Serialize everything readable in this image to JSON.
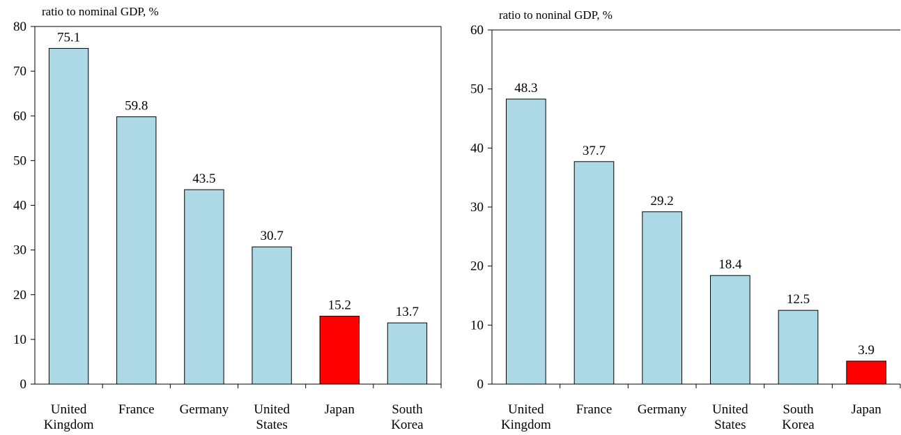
{
  "chart_data": [
    {
      "type": "bar",
      "y_axis_label": "ratio to nominal GDP, %",
      "categories": [
        "United Kingdom",
        "France",
        "Germany",
        "United States",
        "Japan",
        "South Korea"
      ],
      "values": [
        75.1,
        59.8,
        43.5,
        30.7,
        15.2,
        13.7
      ],
      "colors": [
        "#add8e6",
        "#add8e6",
        "#add8e6",
        "#add8e6",
        "#ff0000",
        "#add8e6"
      ],
      "ylim": [
        0,
        80
      ],
      "yticks": [
        0,
        10,
        20,
        30,
        40,
        50,
        60,
        70,
        80
      ]
    },
    {
      "type": "bar",
      "y_axis_label": "ratio to noninal GDP, %",
      "categories": [
        "United Kingdom",
        "France",
        "Germany",
        "United States",
        "South Korea",
        "Japan"
      ],
      "values": [
        48.3,
        37.7,
        29.2,
        18.4,
        12.5,
        3.9
      ],
      "colors": [
        "#add8e6",
        "#add8e6",
        "#add8e6",
        "#add8e6",
        "#add8e6",
        "#ff0000"
      ],
      "ylim": [
        0,
        60
      ],
      "yticks": [
        0,
        10,
        20,
        30,
        40,
        50,
        60
      ]
    }
  ]
}
